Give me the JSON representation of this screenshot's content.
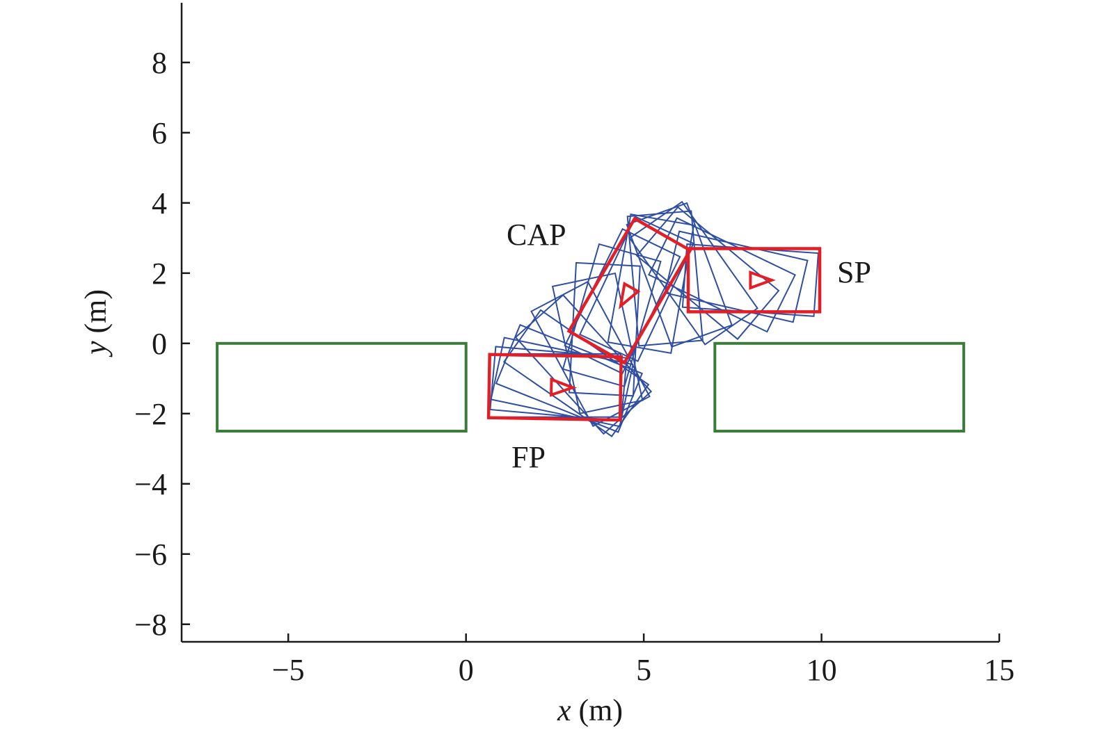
{
  "chart_data": {
    "type": "scatter",
    "title": "",
    "xlabel": {
      "var": "x",
      "unit": " (m)"
    },
    "ylabel": {
      "var": "y",
      "unit": " (m)"
    },
    "xlim": [
      -8,
      15
    ],
    "ylim": [
      -8.5,
      9.7
    ],
    "xticks": [
      -5,
      0,
      5,
      10,
      15
    ],
    "yticks": [
      -8,
      -6,
      -4,
      -2,
      0,
      2,
      4,
      6,
      8
    ],
    "xtick_labels": [
      "−5",
      "0",
      "5",
      "10",
      "15"
    ],
    "ytick_labels": [
      "−8",
      "−6",
      "−4",
      "−2",
      "0",
      "2",
      "4",
      "6",
      "8"
    ],
    "grid": false,
    "colors": {
      "obstacle": "#3a7d3a",
      "key_pose": "#e31e25",
      "trajectory": "#2e4ea3",
      "axis": "#1a1a1a"
    },
    "vehicle": {
      "length": 3.7,
      "width": 1.8
    },
    "obstacles": [
      {
        "x0": -7,
        "y0": -2.5,
        "x1": 0,
        "y1": 0
      },
      {
        "x0": 7,
        "y0": -2.5,
        "x1": 14,
        "y1": 0
      }
    ],
    "key_poses": [
      {
        "label": "FP",
        "cx": 2.5,
        "cy": -1.25,
        "heading_deg": -1
      },
      {
        "label": "CAP",
        "cx": 4.6,
        "cy": 1.5,
        "heading_deg": -120
      },
      {
        "label": "SP",
        "cx": 8.1,
        "cy": 1.8,
        "heading_deg": 0
      }
    ],
    "trajectory_poses": [
      {
        "cx": 2.5,
        "cy": -1.2,
        "heading_deg": 0
      },
      {
        "cx": 2.6,
        "cy": -1.15,
        "heading_deg": -5
      },
      {
        "cx": 2.7,
        "cy": -1.1,
        "heading_deg": -12
      },
      {
        "cx": 2.9,
        "cy": -1.0,
        "heading_deg": -22
      },
      {
        "cx": 3.1,
        "cy": -0.85,
        "heading_deg": -35
      },
      {
        "cx": 3.3,
        "cy": -0.6,
        "heading_deg": -48
      },
      {
        "cx": 3.5,
        "cy": -0.3,
        "heading_deg": -62
      },
      {
        "cx": 3.7,
        "cy": 0.0,
        "heading_deg": -78
      },
      {
        "cx": 3.9,
        "cy": 0.4,
        "heading_deg": -93
      },
      {
        "cx": 4.1,
        "cy": 0.8,
        "heading_deg": -106
      },
      {
        "cx": 4.4,
        "cy": 1.2,
        "heading_deg": -116
      },
      {
        "cx": 4.8,
        "cy": 1.55,
        "heading_deg": -115
      },
      {
        "cx": 5.2,
        "cy": 1.7,
        "heading_deg": -100
      },
      {
        "cx": 5.6,
        "cy": 1.85,
        "heading_deg": -85
      },
      {
        "cx": 6.0,
        "cy": 1.95,
        "heading_deg": -70
      },
      {
        "cx": 6.4,
        "cy": 2.0,
        "heading_deg": -55
      },
      {
        "cx": 6.8,
        "cy": 2.0,
        "heading_deg": -40
      },
      {
        "cx": 7.2,
        "cy": 1.95,
        "heading_deg": -26
      },
      {
        "cx": 7.6,
        "cy": 1.9,
        "heading_deg": -13
      },
      {
        "cx": 8.0,
        "cy": 1.8,
        "heading_deg": -4
      }
    ]
  }
}
